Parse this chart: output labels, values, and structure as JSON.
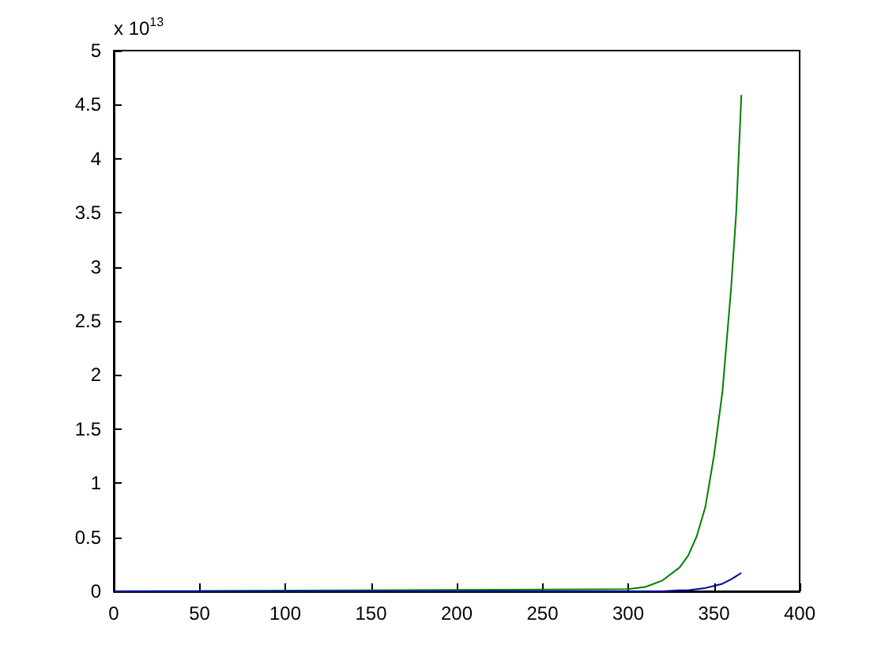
{
  "chart_data": {
    "type": "line",
    "annotations": [
      "x 10$^{13}$"
    ],
    "xlim": [
      0,
      400
    ],
    "xticks": [
      0,
      50,
      100,
      150,
      200,
      250,
      300,
      350,
      400
    ],
    "ylim": [
      0,
      5
    ],
    "yticks": [
      0,
      0.5,
      1,
      1.5,
      2,
      2.5,
      3,
      3.5,
      4,
      4.5,
      5
    ],
    "grid": false,
    "marker": "none",
    "line_style": "solid",
    "x": [
      0,
      300,
      310,
      320,
      330,
      335,
      340,
      345,
      350,
      355,
      360,
      363,
      366
    ],
    "series": [
      {
        "color": "#008000",
        "values": [
          0,
          0.02,
          0.04,
          0.1,
          0.22,
          0.33,
          0.51,
          0.78,
          1.25,
          1.85,
          2.8,
          3.5,
          4.59
        ]
      },
      {
        "color": "#0000a0",
        "values": [
          0,
          0,
          0,
          0,
          0.01,
          0.01,
          0.02,
          0.03,
          0.05,
          0.07,
          0.11,
          0.14,
          0.17
        ]
      }
    ]
  }
}
